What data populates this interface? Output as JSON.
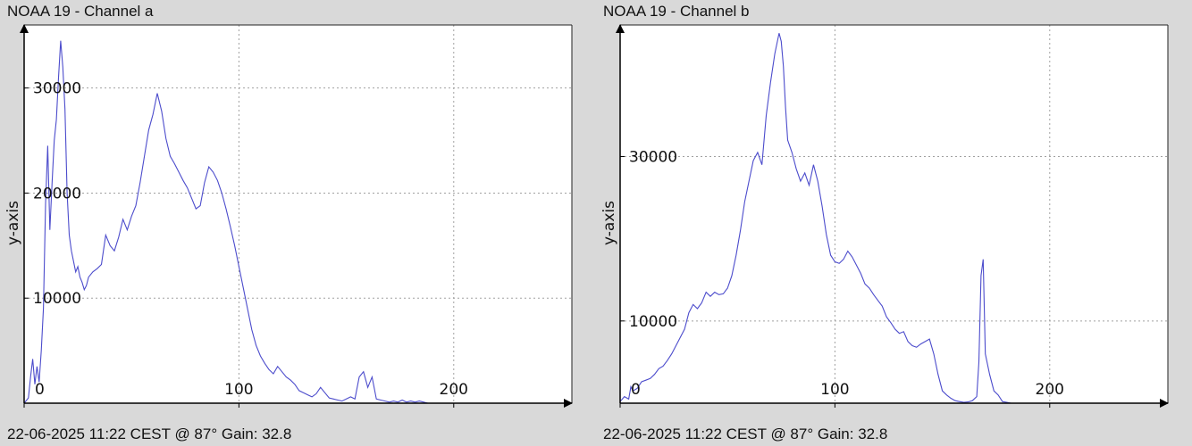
{
  "panels": [
    {
      "title": "NOAA 19 - Channel a",
      "footer": "22-06-2025 11:22 CEST @ 87° Gain: 32.8"
    },
    {
      "title": "NOAA 19 - Channel b",
      "footer": "22-06-2025 11:22 CEST @ 87° Gain: 32.8"
    }
  ],
  "chart_data": [
    {
      "type": "line",
      "title": "NOAA 19 - Channel a",
      "xlabel": "",
      "ylabel": "y-axis",
      "xlim": [
        0,
        255
      ],
      "ylim": [
        0,
        36000
      ],
      "grid": true,
      "x_ticks": [
        0,
        100,
        200
      ],
      "y_ticks": [
        10000,
        20000,
        30000
      ],
      "line_color": "#4c4ccc",
      "series": [
        {
          "x": [
            0,
            2,
            3,
            4,
            5,
            6,
            7,
            8,
            9,
            10,
            11,
            12,
            13,
            14,
            15,
            16,
            17,
            18,
            19,
            20,
            21,
            22,
            23,
            24,
            25,
            26,
            27,
            28,
            29,
            30,
            32,
            34,
            36,
            38,
            40,
            42,
            44,
            46,
            48,
            50,
            52,
            54,
            56,
            58,
            60,
            62,
            64,
            66,
            68,
            70,
            72,
            74,
            76,
            78,
            80,
            82,
            84,
            86,
            88,
            90,
            92,
            94,
            96,
            98,
            100,
            102,
            104,
            106,
            108,
            110,
            112,
            114,
            116,
            118,
            120,
            122,
            124,
            126,
            128,
            130,
            132,
            134,
            136,
            138,
            140,
            142,
            144,
            146,
            148,
            150,
            152,
            154,
            156,
            158,
            160,
            162,
            164,
            166,
            168,
            170,
            172,
            174,
            176,
            178,
            180,
            182,
            184,
            186,
            188,
            190
          ],
          "y": [
            0,
            500,
            2500,
            4200,
            1800,
            3500,
            2000,
            5000,
            9000,
            19000,
            24500,
            16500,
            21000,
            25000,
            27000,
            31000,
            34500,
            32000,
            28000,
            20000,
            16000,
            14500,
            13500,
            12500,
            13000,
            12000,
            11500,
            10800,
            11200,
            12000,
            12500,
            12800,
            13200,
            16000,
            15000,
            14500,
            15800,
            17500,
            16500,
            17800,
            18800,
            21000,
            23500,
            26000,
            27500,
            29500,
            27800,
            25200,
            23500,
            22800,
            22000,
            21200,
            20500,
            19500,
            18500,
            18800,
            21000,
            22500,
            22000,
            21200,
            20000,
            18500,
            16800,
            15000,
            13000,
            11000,
            9000,
            7000,
            5500,
            4500,
            3800,
            3200,
            2800,
            3500,
            3000,
            2500,
            2200,
            1800,
            1200,
            1000,
            800,
            600,
            900,
            1500,
            1000,
            500,
            400,
            300,
            200,
            400,
            600,
            400,
            2500,
            3000,
            1500,
            2500,
            400,
            300,
            200,
            100,
            200,
            100,
            300,
            100,
            200,
            100,
            200,
            100,
            0,
            0
          ]
        }
      ]
    },
    {
      "type": "line",
      "title": "NOAA 19 - Channel b",
      "xlabel": "",
      "ylabel": "y-axis",
      "xlim": [
        0,
        255
      ],
      "ylim": [
        0,
        46000
      ],
      "grid": true,
      "x_ticks": [
        0,
        100,
        200
      ],
      "y_ticks": [
        10000,
        30000
      ],
      "line_color": "#4c4ccc",
      "series": [
        {
          "x": [
            0,
            2,
            4,
            5,
            6,
            8,
            10,
            12,
            14,
            16,
            18,
            20,
            22,
            24,
            26,
            28,
            30,
            32,
            34,
            36,
            38,
            40,
            42,
            44,
            46,
            48,
            50,
            52,
            54,
            56,
            58,
            60,
            62,
            64,
            66,
            68,
            70,
            72,
            74,
            75,
            76,
            77,
            78,
            80,
            82,
            84,
            86,
            88,
            90,
            92,
            94,
            96,
            98,
            100,
            102,
            104,
            106,
            108,
            110,
            112,
            114,
            116,
            118,
            120,
            122,
            124,
            126,
            128,
            130,
            132,
            134,
            136,
            138,
            140,
            142,
            144,
            146,
            148,
            150,
            152,
            154,
            156,
            158,
            160,
            162,
            164,
            166,
            167,
            168,
            169,
            170,
            172,
            174,
            176,
            178,
            180,
            182
          ],
          "y": [
            200,
            800,
            500,
            2000,
            1500,
            1800,
            2600,
            2800,
            3000,
            3500,
            4200,
            4500,
            5200,
            6000,
            7000,
            8000,
            9000,
            11000,
            12000,
            11500,
            12200,
            13500,
            13000,
            13500,
            13200,
            13300,
            14000,
            15500,
            18000,
            21000,
            24500,
            27000,
            29500,
            30500,
            29000,
            35000,
            39000,
            42500,
            45000,
            44000,
            41000,
            36000,
            32000,
            30500,
            28500,
            27000,
            28000,
            26500,
            29000,
            27000,
            24000,
            20500,
            18000,
            17200,
            17000,
            17500,
            18500,
            17800,
            16800,
            15800,
            14500,
            14000,
            13200,
            12500,
            11800,
            10500,
            9800,
            9000,
            8500,
            8700,
            7500,
            7000,
            6800,
            7200,
            7500,
            7800,
            6000,
            3500,
            1500,
            1000,
            600,
            300,
            200,
            100,
            150,
            300,
            800,
            5000,
            15500,
            17500,
            6000,
            3500,
            1500,
            1000,
            200,
            100,
            0
          ]
        }
      ]
    }
  ]
}
